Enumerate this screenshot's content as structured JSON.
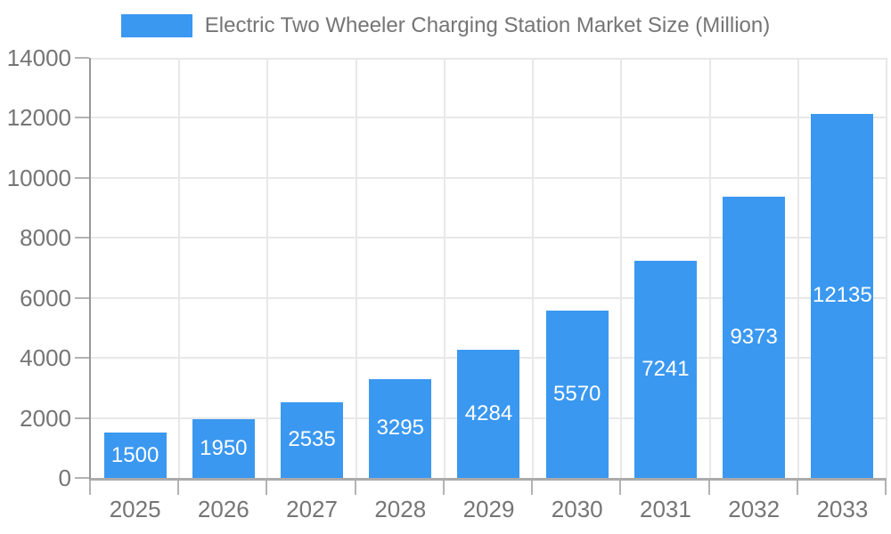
{
  "chart_data": {
    "type": "bar",
    "title": "Electric Two Wheeler Charging Station Market Size (Million)",
    "legend": {
      "position": "top",
      "label": "Electric Two Wheeler Charging Station Market Size (Million)"
    },
    "categories": [
      "2025",
      "2026",
      "2027",
      "2028",
      "2029",
      "2030",
      "2031",
      "2032",
      "2033"
    ],
    "series": [
      {
        "name": "Electric Two Wheeler Charging Station Market Size (Million)",
        "values": [
          1500,
          1950,
          2535,
          3295,
          4284,
          5570,
          7241,
          9373,
          12135
        ]
      }
    ],
    "xlabel": "",
    "ylabel": "",
    "ylim": [
      0,
      14000
    ],
    "yticks": [
      0,
      2000,
      4000,
      6000,
      8000,
      10000,
      12000,
      14000
    ],
    "grid": true,
    "colors": {
      "bar": "#3b98f0",
      "bar_label": "#ffffff",
      "axis_text": "#757575",
      "axis_line": "#999999",
      "grid_line": "#e8e8e8",
      "tick": "#b3b3b3",
      "background": "#ffffff"
    }
  }
}
